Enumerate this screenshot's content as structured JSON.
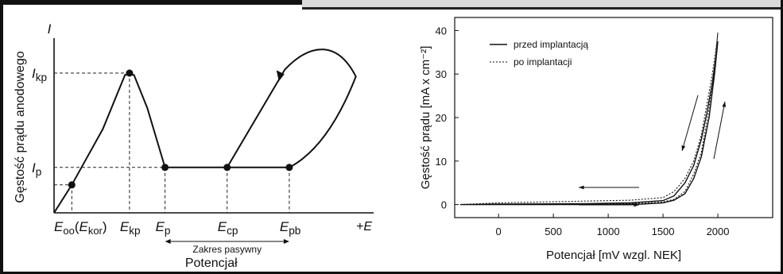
{
  "chart_data": [
    {
      "type": "line",
      "title": "",
      "ylabel": "Gęstość prądu anodowego",
      "y_axis_symbol": "I",
      "y_ticks": [
        {
          "sym": "I",
          "sub": "kp"
        },
        {
          "sym": "I",
          "sub": "p"
        }
      ],
      "x_axis_symbol": "+E",
      "x_ticks": [
        {
          "sym": "E",
          "sub": "oo",
          "rest": "(",
          "sym2": "E",
          "sub2": "kor",
          "end": ")"
        },
        {
          "sym": "E",
          "sub": "kp"
        },
        {
          "sym": "E",
          "sub": "p"
        },
        {
          "sym": "E",
          "sub": "cp"
        },
        {
          "sym": "E",
          "sub": "pb"
        }
      ],
      "xlabel": "Potencjał",
      "range_label": "Zakres pasywny",
      "x": [
        0.0,
        0.2,
        0.55,
        0.85,
        1.0,
        1.6,
        2.2,
        2.6,
        2.85,
        2.95,
        2.8,
        2.55,
        2.2
      ],
      "values": [
        0.0,
        0.8,
        2.4,
        4.0,
        3.4,
        1.3,
        1.3,
        1.3,
        1.9,
        3.6,
        4.7,
        4.3,
        3.0
      ],
      "marked_points": [
        {
          "x": 0.2,
          "y": 0.8
        },
        {
          "x": 0.85,
          "y": 4.0
        },
        {
          "x": 1.25,
          "y": 1.3
        },
        {
          "x": 1.95,
          "y": 1.3
        },
        {
          "x": 2.65,
          "y": 1.3
        }
      ]
    },
    {
      "type": "line",
      "title": "",
      "xlabel": "Potencjał [mV wzgl. NEK]",
      "ylabel": "Gęstość prądu [mA x cm⁻²]",
      "xlim": [
        -400,
        2500
      ],
      "ylim": [
        -3,
        43
      ],
      "x_ticks": [
        0,
        500,
        1000,
        1500,
        2000
      ],
      "y_ticks": [
        0,
        10,
        20,
        30,
        40
      ],
      "legend": "top-left",
      "series": [
        {
          "name": "przed implantacją",
          "style": "solid",
          "x": [
            -350,
            0,
            500,
            1000,
            1300,
            1500,
            1600,
            1700,
            1780,
            1850,
            1920,
            1970,
            2000,
            1990,
            1950,
            1900,
            1850,
            1780,
            1700,
            1600,
            1500,
            1200,
            800,
            0,
            -350
          ],
          "values": [
            0,
            0,
            0,
            0,
            0.1,
            0.4,
            1,
            2.5,
            6,
            11,
            20,
            30,
            37.5,
            35,
            28,
            21,
            15,
            9,
            5,
            2,
            0.9,
            0.4,
            0.2,
            0.1,
            0
          ]
        },
        {
          "name": "po implantacji",
          "style": "dotted",
          "x": [
            -350,
            0,
            500,
            1000,
            1300,
            1500,
            1600,
            1700,
            1780,
            1850,
            1920,
            1975,
            2000,
            1990,
            1950,
            1900,
            1850,
            1780,
            1700,
            1600,
            1500,
            1200,
            800,
            0,
            -350
          ],
          "values": [
            0,
            0,
            0,
            0.2,
            0.3,
            0.6,
            1.2,
            3,
            7,
            12,
            22,
            33,
            39.5,
            37,
            30,
            23,
            16,
            10,
            6,
            3,
            1.6,
            1,
            0.8,
            0.4,
            0
          ]
        }
      ]
    }
  ]
}
